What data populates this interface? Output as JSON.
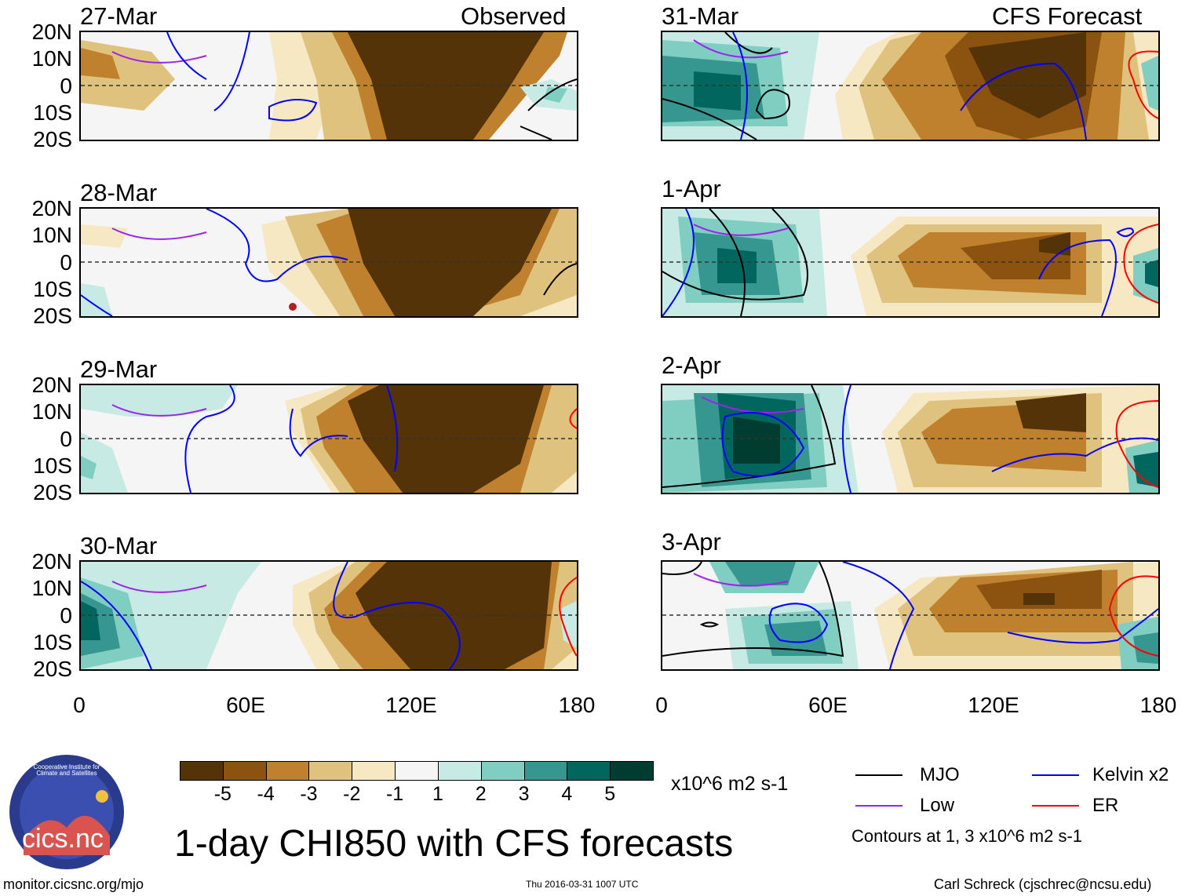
{
  "observed_label": "Observed",
  "forecast_label": "CFS Forecast",
  "panels_observed": [
    {
      "date": "27-Mar"
    },
    {
      "date": "28-Mar"
    },
    {
      "date": "29-Mar"
    },
    {
      "date": "30-Mar"
    }
  ],
  "panels_forecast": [
    {
      "date": "31-Mar"
    },
    {
      "date": "1-Apr"
    },
    {
      "date": "2-Apr"
    },
    {
      "date": "3-Apr"
    }
  ],
  "lat_ticks": [
    "20N",
    "10N",
    "0",
    "10S",
    "20S"
  ],
  "lon_ticks": [
    "0",
    "60E",
    "120E",
    "180"
  ],
  "colorbar": {
    "colors": [
      "#553308",
      "#8c520f",
      "#bf812d",
      "#dfc27d",
      "#f6e8c3",
      "#f5f5f5",
      "#c7eae5",
      "#80cdc1",
      "#35978f",
      "#01665e",
      "#003c30"
    ],
    "labels": [
      "-5",
      "-4",
      "-3",
      "-2",
      "-1",
      "1",
      "2",
      "3",
      "4",
      "5"
    ],
    "units": "x10^6 m2 s-1"
  },
  "legend": {
    "items": [
      {
        "label": "MJO",
        "color": "#000000"
      },
      {
        "label": "Kelvin x2",
        "color": "#0000ff"
      },
      {
        "label": "Low",
        "color": "#a020f0"
      },
      {
        "label": "ER",
        "color": "#ff0000"
      }
    ],
    "note": "Contours at 1, 3 x10^6 m2 s-1"
  },
  "main_title": "1-day CHI850 with CFS forecasts",
  "logo_text": "cics.nc",
  "logo_ring_text": "Cooperative Institute for Climate and Satellites",
  "footer": {
    "url": "monitor.cicsnc.org/mjo",
    "timestamp": "Thu 2016-03-31 1007 UTC",
    "credit": "Carl Schreck (cjschrec@ncsu.edu)"
  }
}
